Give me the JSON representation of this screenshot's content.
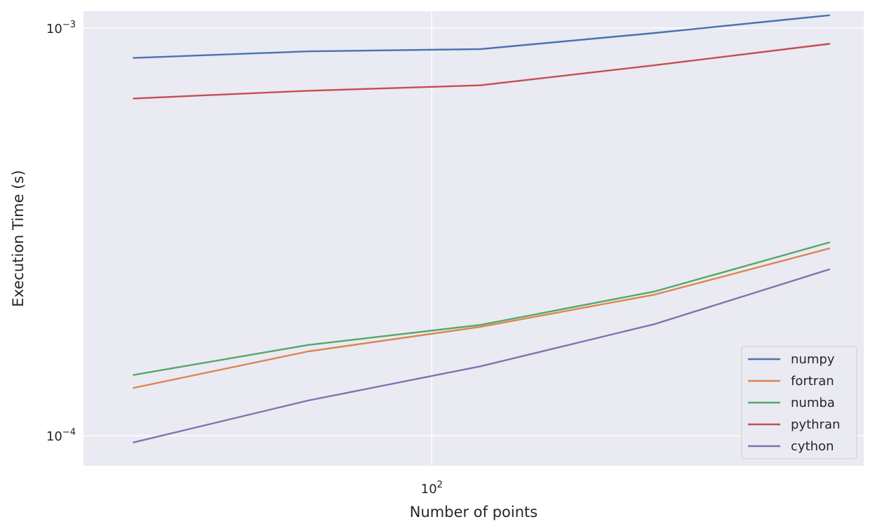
{
  "chart_data": {
    "type": "line",
    "xscale": "log",
    "yscale": "log",
    "x": [
      50,
      75,
      112,
      168,
      252
    ],
    "xlim": [
      44.5,
      273
    ],
    "ylim": [
      8.44e-05,
      0.0011
    ],
    "xticks": [
      {
        "value": 100,
        "base": "10",
        "exp": "2"
      }
    ],
    "yticks": [
      {
        "value": 0.001,
        "base": "10",
        "exp": "−3"
      },
      {
        "value": 0.0001,
        "base": "10",
        "exp": "−4"
      }
    ],
    "xlabel": "Number of points",
    "ylabel": "Execution Time (s)",
    "grid": true,
    "legend_position": "lower-right",
    "series": [
      {
        "name": "numpy",
        "color": "#4c72b0",
        "values": [
          0.000845,
          0.000877,
          0.000888,
          0.000973,
          0.001075
        ]
      },
      {
        "name": "fortran",
        "color": "#dd8452",
        "values": [
          0.000131,
          0.000161,
          0.000185,
          0.000222,
          0.000288
        ]
      },
      {
        "name": "numba",
        "color": "#55a868",
        "values": [
          0.000141,
          0.000167,
          0.000187,
          0.000226,
          0.000298
        ]
      },
      {
        "name": "pythran",
        "color": "#c44e52",
        "values": [
          0.000672,
          0.000702,
          0.000724,
          0.000811,
          0.000915
        ]
      },
      {
        "name": "cython",
        "color": "#8172b3",
        "values": [
          9.63e-05,
          0.000122,
          0.000148,
          0.000188,
          0.000256
        ]
      }
    ]
  }
}
